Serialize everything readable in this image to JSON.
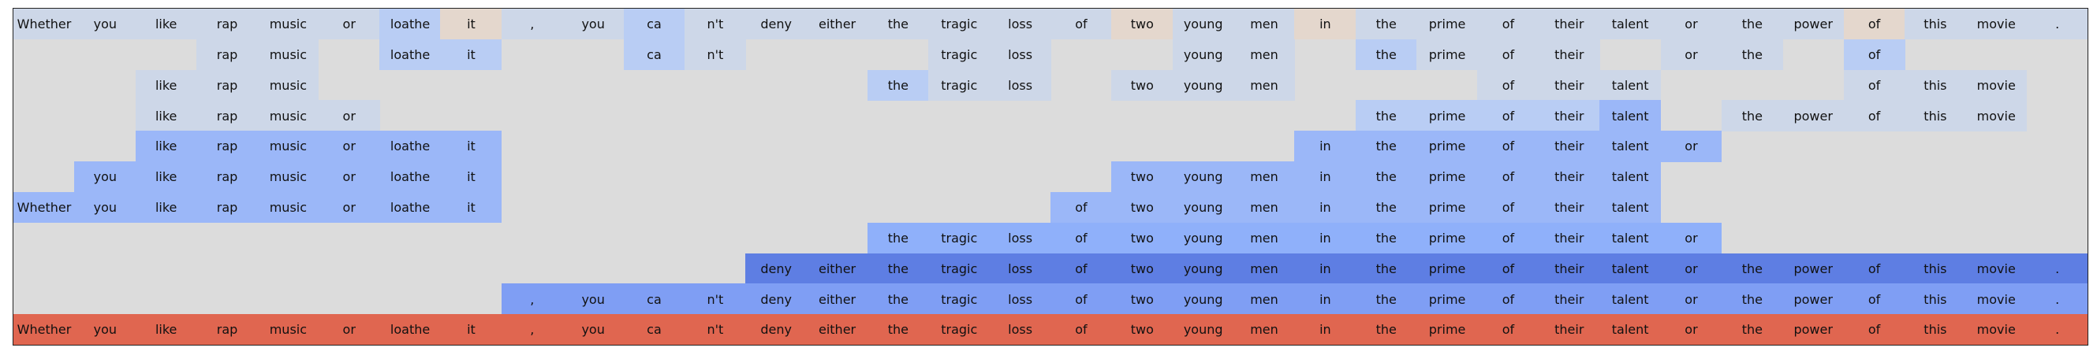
{
  "tokens": [
    "Whether",
    "you",
    "like",
    "rap",
    "music",
    "or",
    "loathe",
    "it",
    ",",
    "you",
    "ca",
    "n't",
    "deny",
    "either",
    "the",
    "tragic",
    "loss",
    "of",
    "two",
    "young",
    "men",
    "in",
    "the",
    "prime",
    "of",
    "their",
    "talent",
    "or",
    "the",
    "power",
    "of",
    "this",
    "movie",
    "."
  ],
  "background_color": "#dcdcdc",
  "colors": {
    "a": "#dcdcdc",
    "p": "#e4d7cd",
    "b": "#cdd7e8",
    "c": "#b9cdf4",
    "d": "#9bb7f8",
    "e": "#8fb0fa",
    "f": "#7f9ef4",
    "g": "#5e7ee3",
    "r": "#e06650"
  },
  "rows": [
    "bbbbbbcpbbcbbbbbbbpbbpbbbbbbbbpbbb",
    "aaabbaccaacbaaabbaabbacbbbabbacaaa",
    "aabbbaaaaaaaaacbbabbbaaabbbaaabbba",
    "aabbbbaaaaaaaaaaaaaaaaccccdabbbbba",
    "aaddddddaaaaaaaaaaaaadddddddaaaaaa",
    "adddddddaaaaaaaaaadddddddddaaaaaaa",
    "ddddddddaaaaaaaaaddddddddddaaaaaaa",
    "aaaaaaaaaaaaaaeeeeeeeeeeeeeeaaaaaa",
    "aaaaaaaaaaaagggggggggggggggggggggg",
    "aaaaaaaaffffffffffffffffffffffffff",
    "rrrrrrrrrrrrrrrrrrrrrrrrrrrrrrrrrr"
  ]
}
